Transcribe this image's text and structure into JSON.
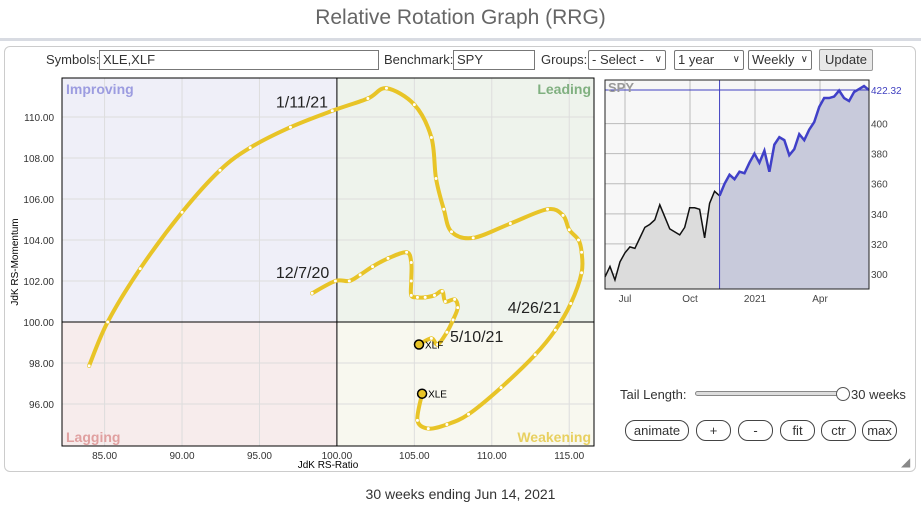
{
  "title": "Relative Rotation Graph (RRG)",
  "toolbar": {
    "symbols_label": "Symbols:",
    "symbols_value": "XLE,XLF",
    "benchmark_label": "Benchmark:",
    "benchmark_value": "SPY",
    "groups_label": "Groups:",
    "groups_value": "- Select -",
    "period_value": "1 year",
    "frequency_value": "Weekly",
    "update_label": "Update"
  },
  "quadrants": {
    "improving": "Improving",
    "leading": "Leading",
    "lagging": "Lagging",
    "weakening": "Weakening"
  },
  "colors": {
    "improving_bg": "#efeff8",
    "leading_bg": "#eef3ec",
    "lagging_bg": "#f7ecec",
    "weakening_bg": "#f8f8ef",
    "improving": "#9c9ce0",
    "leading": "#80b080",
    "lagging": "#e0a0a0",
    "weakening": "#e8d060",
    "tail": "#e8c427",
    "spy_line": "#4040c8"
  },
  "chart_data": [
    {
      "type": "line",
      "title": "RRG",
      "xlabel": "JdK RS-Ratio",
      "ylabel": "JdK RS-Momentum",
      "xlim": [
        82.25,
        116.6
      ],
      "ylim": [
        93.95,
        111.9
      ],
      "xticks": [
        85,
        90,
        95,
        100,
        105,
        110,
        115
      ],
      "yticks": [
        96,
        98,
        100,
        102,
        104,
        106,
        108,
        110
      ],
      "series": [
        {
          "name": "XLE",
          "points": [
            [
              84,
              97.86
            ],
            [
              85.2,
              100
            ],
            [
              87.3,
              102.6
            ],
            [
              90,
              105.35
            ],
            [
              92.45,
              107.4
            ],
            [
              94.4,
              108.5
            ],
            [
              97,
              109.5
            ],
            [
              99.7,
              110.3
            ],
            [
              102,
              110.9
            ],
            [
              103.2,
              111.4
            ],
            [
              105,
              110.6
            ],
            [
              106.1,
              109
            ],
            [
              106.4,
              107
            ],
            [
              106.9,
              105.5
            ],
            [
              107.4,
              104.4
            ],
            [
              108.8,
              104.1
            ],
            [
              111.2,
              104.8
            ],
            [
              113.6,
              105.5
            ],
            [
              114.6,
              105.2
            ],
            [
              115,
              104.5
            ],
            [
              115.6,
              104
            ],
            [
              115.8,
              103.4
            ],
            [
              115.8,
              102.4
            ],
            [
              115.1,
              100.9
            ],
            [
              114.1,
              99.6
            ],
            [
              112.8,
              98.4
            ],
            [
              110.6,
              96.8
            ],
            [
              108.5,
              95.5
            ],
            [
              107.1,
              95
            ],
            [
              105.9,
              94.8
            ],
            [
              105.2,
              95.2
            ],
            [
              105.5,
              96.5
            ]
          ]
        },
        {
          "name": "XLF",
          "points": [
            [
              98.4,
              101.4
            ],
            [
              99.9,
              102
            ],
            [
              100.8,
              102
            ],
            [
              101.5,
              102.3
            ],
            [
              102.3,
              102.7
            ],
            [
              103.3,
              103.1
            ],
            [
              104.5,
              103.4
            ],
            [
              104.8,
              102.9
            ],
            [
              104.8,
              102
            ],
            [
              104.8,
              101.3
            ],
            [
              105.2,
              101.2
            ],
            [
              105.7,
              101.2
            ],
            [
              106.3,
              101.3
            ],
            [
              106.8,
              101.5
            ],
            [
              107,
              101
            ],
            [
              107.6,
              101.1
            ],
            [
              107.8,
              100.7
            ],
            [
              107.5,
              100.1
            ],
            [
              107.1,
              99.5
            ],
            [
              106.5,
              98.9
            ],
            [
              106.1,
              99.2
            ],
            [
              105.3,
              98.9
            ]
          ]
        }
      ],
      "annotations": [
        {
          "text": "1/11/21",
          "x": 96.06,
          "y": 110.46
        },
        {
          "text": "12/7/20",
          "x": 96.06,
          "y": 102.14
        },
        {
          "text": "4/26/21",
          "x": 111.03,
          "y": 100.44
        },
        {
          "text": "5/10/21",
          "x": 107.3,
          "y": 99.03
        }
      ]
    },
    {
      "type": "line",
      "title": "SPY",
      "last_value": "422.32",
      "ylim": [
        290,
        429
      ],
      "yticks": [
        300,
        320,
        340,
        360,
        380,
        400
      ],
      "xtick_labels": [
        "Jul",
        "Oct",
        "2021",
        "Apr"
      ],
      "tail_start_index": 23,
      "values": [
        298,
        305,
        296,
        308,
        314,
        318,
        317,
        324,
        331,
        333,
        336,
        346,
        338,
        330,
        328,
        326,
        331,
        344,
        344,
        343,
        324,
        347,
        355,
        352,
        360,
        366,
        363,
        368,
        367,
        374,
        380,
        374,
        382,
        368,
        386,
        391,
        389,
        379,
        383,
        393,
        389,
        396,
        401,
        411,
        417,
        417,
        418,
        422,
        417,
        415,
        421,
        423,
        425,
        422.32
      ]
    }
  ],
  "tail": {
    "label": "Tail Length:",
    "value": "30 weeks",
    "fraction": 1.0
  },
  "buttons": {
    "animate": "animate",
    "zoom_in": "+",
    "zoom_out": "-",
    "fit": "fit",
    "center": "ctr",
    "max": "max"
  },
  "footer": "30 weeks ending Jun 14, 2021"
}
